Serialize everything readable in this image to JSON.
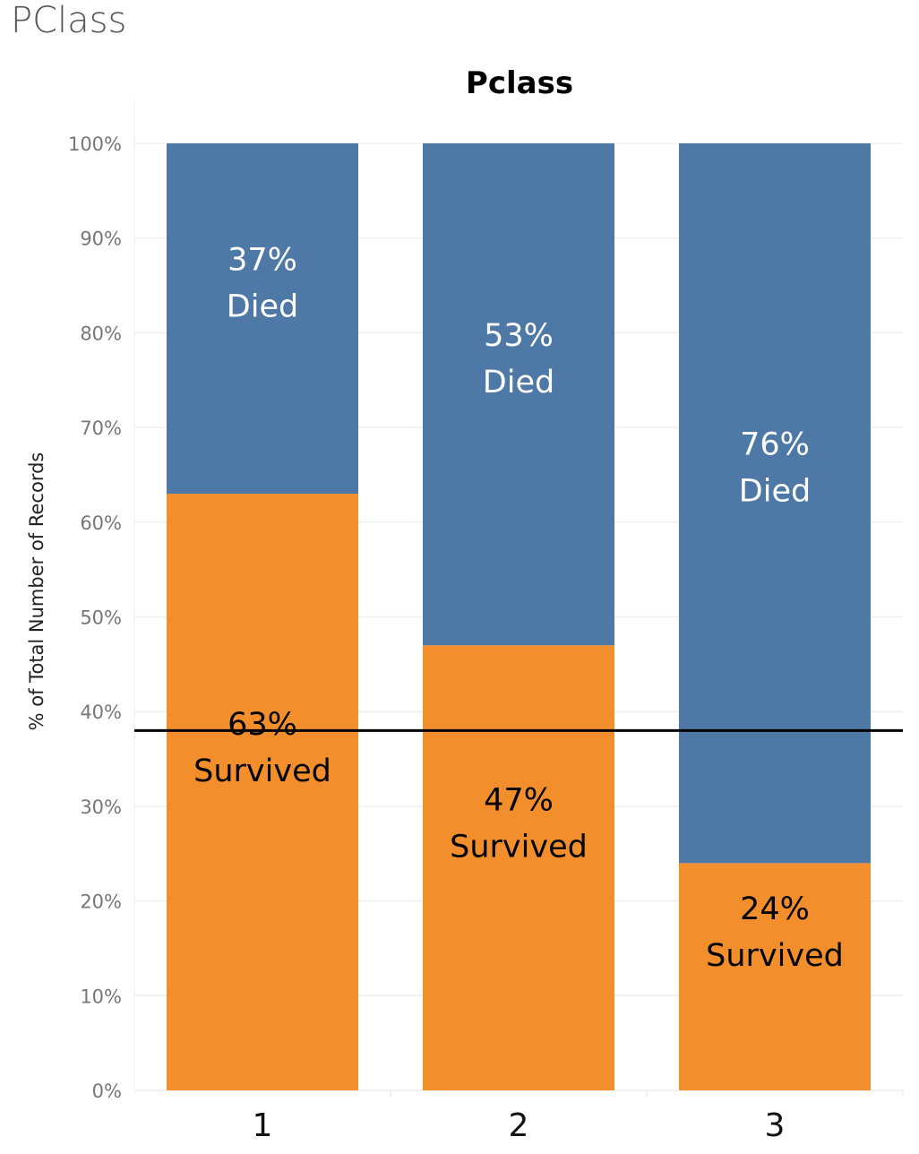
{
  "sheet": {
    "title": "PClass"
  },
  "chart_data": {
    "type": "bar",
    "stacked": true,
    "title": "Pclass",
    "xlabel": "",
    "ylabel": "% of Total Number of Records",
    "categories": [
      "1",
      "2",
      "3"
    ],
    "ylim": [
      0,
      100
    ],
    "yticks": [
      "0%",
      "10%",
      "20%",
      "30%",
      "40%",
      "50%",
      "60%",
      "70%",
      "80%",
      "90%",
      "100%"
    ],
    "series": [
      {
        "name": "Survived",
        "values": [
          63,
          47,
          24
        ],
        "color": "#f28e2c",
        "label_color": "#000000",
        "labels": [
          [
            "63%",
            "Survived"
          ],
          [
            "47%",
            "Survived"
          ],
          [
            "24%",
            "Survived"
          ]
        ]
      },
      {
        "name": "Died",
        "values": [
          37,
          53,
          76
        ],
        "color": "#4e79a7",
        "label_color": "#ffffff",
        "labels": [
          [
            "37%",
            "Died"
          ],
          [
            "53%",
            "Died"
          ],
          [
            "76%",
            "Died"
          ]
        ]
      }
    ],
    "reference_line": 38,
    "grid": true
  }
}
